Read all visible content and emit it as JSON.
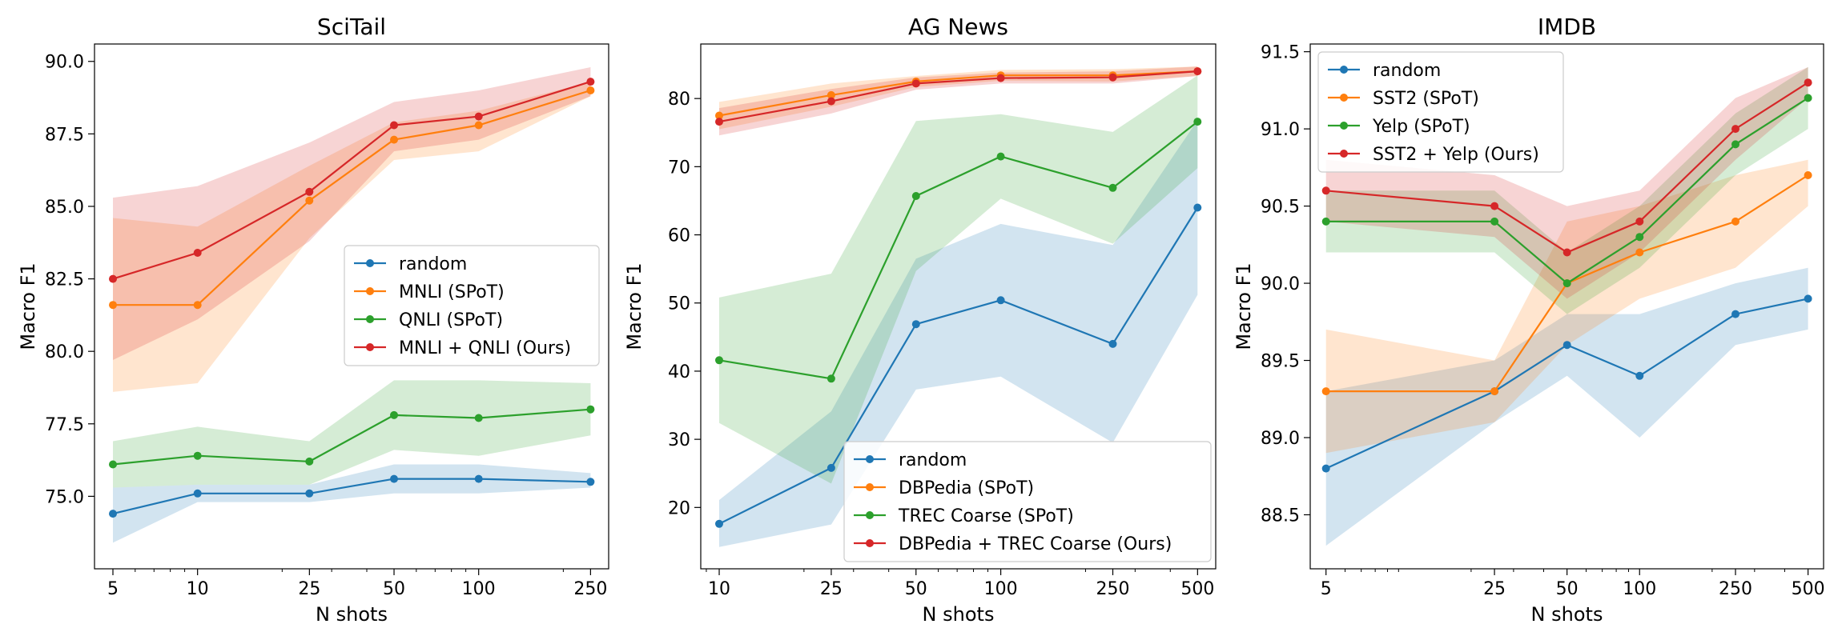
{
  "chart_data": [
    {
      "type": "line",
      "title": "SciTail",
      "xlabel": "N shots",
      "ylabel": "Macro F1",
      "xscale": "log",
      "x": [
        5,
        10,
        25,
        50,
        100,
        250
      ],
      "xticks": [
        "5",
        "10",
        "25",
        "50",
        "100",
        "250"
      ],
      "ylim": [
        72.5,
        90.6
      ],
      "yticks": [
        "75.0",
        "77.5",
        "80.0",
        "82.5",
        "85.0",
        "87.5",
        "90.0"
      ],
      "legend_position": "center-right",
      "series": [
        {
          "name": "random",
          "color": "#1f77b4",
          "values": [
            74.4,
            75.1,
            75.1,
            75.6,
            75.6,
            75.5
          ],
          "lower": [
            73.4,
            74.8,
            74.8,
            75.1,
            75.1,
            75.3
          ],
          "upper": [
            75.3,
            75.4,
            75.4,
            76.1,
            76.1,
            75.8
          ]
        },
        {
          "name": "MNLI (SPoT)",
          "color": "#ff7f0e",
          "values": [
            81.6,
            81.6,
            85.2,
            87.3,
            87.8,
            89.0
          ],
          "lower": [
            78.6,
            78.9,
            83.9,
            86.6,
            86.9,
            88.8
          ],
          "upper": [
            84.6,
            84.3,
            86.4,
            87.9,
            88.3,
            89.3
          ]
        },
        {
          "name": "QNLI (SPoT)",
          "color": "#2ca02c",
          "values": [
            76.1,
            76.4,
            76.2,
            77.8,
            77.7,
            78.0
          ],
          "lower": [
            75.3,
            75.4,
            75.4,
            76.6,
            76.4,
            77.1
          ],
          "upper": [
            76.9,
            77.4,
            76.9,
            79.0,
            79.0,
            78.9
          ]
        },
        {
          "name": "MNLI + QNLI (Ours)",
          "color": "#d62728",
          "values": [
            82.5,
            83.4,
            85.5,
            87.8,
            88.1,
            89.3
          ],
          "lower": [
            79.7,
            81.1,
            83.8,
            86.9,
            87.3,
            88.8
          ],
          "upper": [
            85.3,
            85.7,
            87.2,
            88.6,
            89.0,
            89.8
          ]
        }
      ]
    },
    {
      "type": "line",
      "title": "AG News",
      "xlabel": "N shots",
      "ylabel": "Macro F1",
      "xscale": "log",
      "x": [
        10,
        25,
        50,
        100,
        250,
        500
      ],
      "xticks": [
        "10",
        "25",
        "50",
        "100",
        "250",
        "500"
      ],
      "ylim": [
        11,
        88
      ],
      "yticks": [
        "20",
        "30",
        "40",
        "50",
        "60",
        "70",
        "80"
      ],
      "legend_position": "lower-right",
      "series": [
        {
          "name": "random",
          "color": "#1f77b4",
          "values": [
            17.6,
            25.8,
            46.9,
            50.4,
            44.0,
            64.0
          ],
          "lower": [
            14.2,
            17.5,
            37.3,
            39.2,
            29.5,
            51.2
          ],
          "upper": [
            21.1,
            34.1,
            56.5,
            61.6,
            58.5,
            76.8
          ]
        },
        {
          "name": "DBPedia (SPoT)",
          "color": "#ff7f0e",
          "values": [
            77.5,
            80.5,
            82.5,
            83.4,
            83.4,
            84.0
          ],
          "lower": [
            75.5,
            78.8,
            81.7,
            82.6,
            82.5,
            83.3
          ],
          "upper": [
            79.5,
            82.2,
            83.3,
            84.2,
            84.3,
            84.7
          ]
        },
        {
          "name": "TREC Coarse (SPoT)",
          "color": "#2ca02c",
          "values": [
            41.6,
            38.9,
            65.7,
            71.5,
            66.9,
            76.6
          ],
          "lower": [
            32.4,
            23.5,
            54.7,
            65.3,
            58.7,
            69.8
          ],
          "upper": [
            50.8,
            54.3,
            76.7,
            77.7,
            75.1,
            83.4
          ]
        },
        {
          "name": "DBPedia + TREC Coarse (Ours)",
          "color": "#d62728",
          "values": [
            76.6,
            79.6,
            82.2,
            83.0,
            83.1,
            84.0
          ],
          "lower": [
            74.6,
            77.8,
            81.3,
            82.2,
            82.2,
            83.3
          ],
          "upper": [
            78.6,
            81.4,
            83.1,
            83.8,
            84.0,
            84.7
          ]
        }
      ]
    },
    {
      "type": "line",
      "title": "IMDB",
      "xlabel": "N shots",
      "ylabel": "Macro F1",
      "xscale": "log",
      "x": [
        5,
        25,
        50,
        100,
        250,
        500
      ],
      "xticks": [
        "5",
        "25",
        "50",
        "100",
        "250",
        "500"
      ],
      "ylim": [
        88.15,
        91.55
      ],
      "yticks": [
        "88.5",
        "89.0",
        "89.5",
        "90.0",
        "90.5",
        "91.0",
        "91.5"
      ],
      "legend_position": "upper-left",
      "series": [
        {
          "name": "random",
          "color": "#1f77b4",
          "values": [
            88.8,
            89.3,
            89.6,
            89.4,
            89.8,
            89.9
          ],
          "lower": [
            88.3,
            89.1,
            89.4,
            89.0,
            89.6,
            89.7
          ],
          "upper": [
            89.3,
            89.5,
            89.8,
            89.8,
            90.0,
            90.1
          ]
        },
        {
          "name": "SST2 (SPoT)",
          "color": "#ff7f0e",
          "values": [
            89.3,
            89.3,
            90.0,
            90.2,
            90.4,
            90.7
          ],
          "lower": [
            88.9,
            89.1,
            89.6,
            89.9,
            90.1,
            90.5
          ],
          "upper": [
            89.7,
            89.5,
            90.4,
            90.5,
            90.7,
            90.8
          ]
        },
        {
          "name": "Yelp (SPoT)",
          "color": "#2ca02c",
          "values": [
            90.4,
            90.4,
            90.0,
            90.3,
            90.9,
            91.2
          ],
          "lower": [
            90.2,
            90.2,
            89.8,
            90.1,
            90.7,
            91.0
          ],
          "upper": [
            90.6,
            90.6,
            90.2,
            90.5,
            91.1,
            91.4
          ]
        },
        {
          "name": "SST2 + Yelp (Ours)",
          "color": "#d62728",
          "values": [
            90.6,
            90.5,
            90.2,
            90.4,
            91.0,
            91.3
          ],
          "lower": [
            90.4,
            90.3,
            89.9,
            90.2,
            90.8,
            91.2
          ],
          "upper": [
            90.8,
            90.7,
            90.5,
            90.6,
            91.2,
            91.4
          ]
        }
      ]
    }
  ]
}
